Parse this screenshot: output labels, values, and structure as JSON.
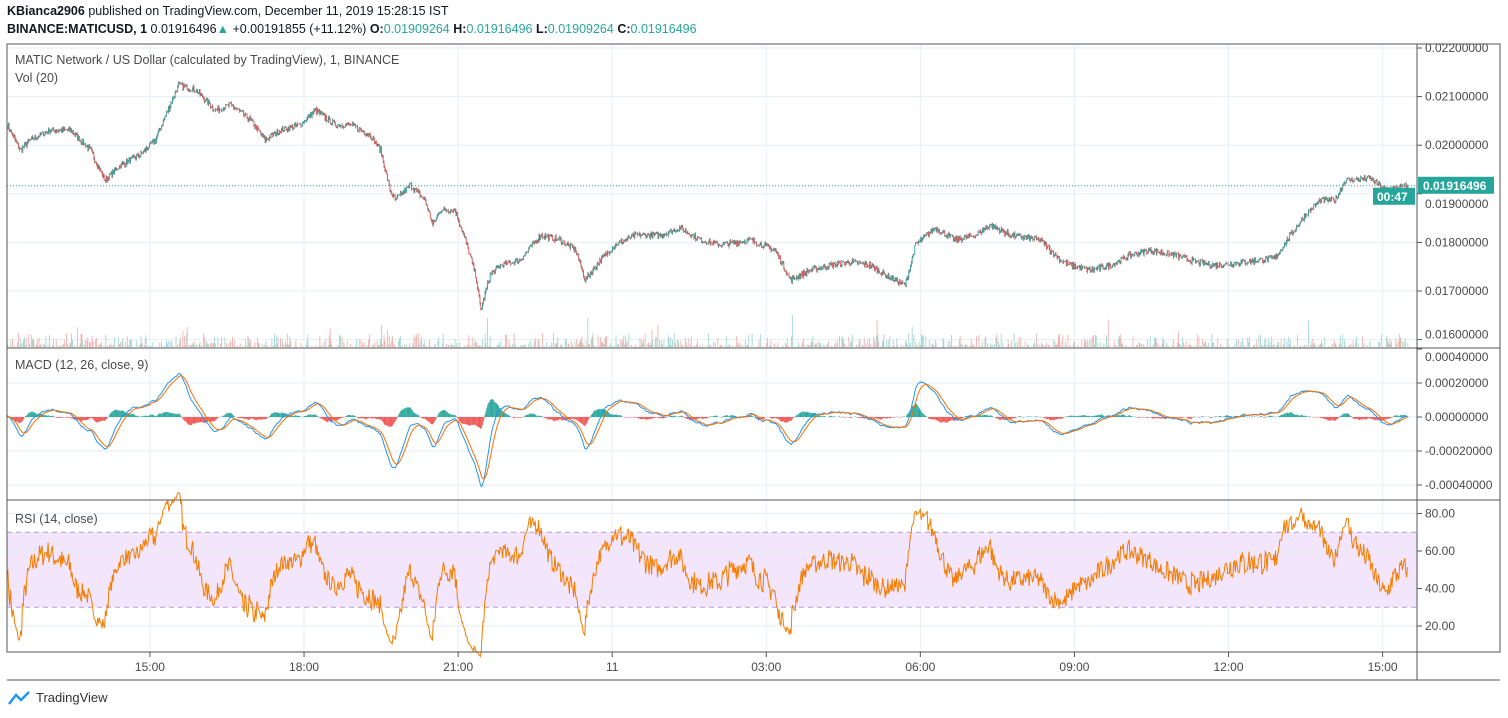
{
  "header": {
    "line1_user": "KBianca2906",
    "line1_rest": "published on TradingView.com, December 11, 2019 15:28:15 IST",
    "symbol": "BINANCE:MATICUSD, 1",
    "last": "0.01916496",
    "change": "+0.00191855 (+11.12%)",
    "o_label": "O:",
    "o": "0.01909264",
    "h_label": "H:",
    "h": "0.01916496",
    "l_label": "L:",
    "l": "0.01909264",
    "c_label": "C:",
    "c": "0.01916496"
  },
  "panes": {
    "main_title": "MATIC Network / US Dollar (calculated by TradingView), 1, BINANCE",
    "vol": "Vol (20)",
    "macd": "MACD (12, 26, close, 9)",
    "rsi": "RSI (14, close)"
  },
  "badges": {
    "price": "0.01916496",
    "countdown": "00:47"
  },
  "footer": {
    "brand": "TradingView"
  },
  "colors": {
    "up": "#26a69a",
    "down": "#ef5350",
    "macd": "#2196f3",
    "signal": "#ff6d00",
    "rsi": "#f57c00",
    "rsi_band": "#f3e5fc"
  },
  "chart_data": [
    {
      "type": "candlestick",
      "title": "MATICUSD 1m",
      "ylim": [
        0.0158,
        0.0222
      ],
      "yticks": [
        "0.02200000",
        "0.02100000",
        "0.02000000",
        "0.01900000",
        "0.01800000",
        "0.01700000",
        "0.01600000"
      ],
      "ytick_values": [
        0.022,
        0.021,
        0.02,
        0.019,
        0.018,
        0.017,
        0.016
      ],
      "xticks": [
        "15:00",
        "18:00",
        "21:00",
        "11",
        "03:00",
        "06:00",
        "09:00",
        "12:00",
        "15:00"
      ],
      "xtick_minutes": [
        167,
        347,
        527,
        707,
        887,
        1067,
        1247,
        1427,
        1607
      ],
      "total_minutes": 1637,
      "keypoints_minute_price": [
        [
          0,
          0.02042
        ],
        [
          15,
          0.0199
        ],
        [
          27,
          0.02011
        ],
        [
          50,
          0.02031
        ],
        [
          74,
          0.02031
        ],
        [
          97,
          0.0199
        ],
        [
          114,
          0.01928
        ],
        [
          132,
          0.01959
        ],
        [
          155,
          0.0198
        ],
        [
          173,
          0.02011
        ],
        [
          185,
          0.02062
        ],
        [
          200,
          0.02124
        ],
        [
          220,
          0.02114
        ],
        [
          243,
          0.02072
        ],
        [
          261,
          0.02083
        ],
        [
          284,
          0.02052
        ],
        [
          301,
          0.02011
        ],
        [
          319,
          0.02031
        ],
        [
          342,
          0.02042
        ],
        [
          360,
          0.02072
        ],
        [
          383,
          0.02042
        ],
        [
          401,
          0.02042
        ],
        [
          424,
          0.02021
        ],
        [
          436,
          0.0199
        ],
        [
          447,
          0.01908
        ],
        [
          453,
          0.01887
        ],
        [
          471,
          0.01918
        ],
        [
          488,
          0.01887
        ],
        [
          497,
          0.01836
        ],
        [
          506,
          0.01867
        ],
        [
          523,
          0.01867
        ],
        [
          535,
          0.01805
        ],
        [
          547,
          0.01733
        ],
        [
          553,
          0.01661
        ],
        [
          564,
          0.01733
        ],
        [
          576,
          0.01753
        ],
        [
          599,
          0.01764
        ],
        [
          623,
          0.01815
        ],
        [
          646,
          0.01805
        ],
        [
          664,
          0.01784
        ],
        [
          675,
          0.01723
        ],
        [
          693,
          0.01764
        ],
        [
          710,
          0.01795
        ],
        [
          734,
          0.01815
        ],
        [
          763,
          0.01815
        ],
        [
          786,
          0.0183
        ],
        [
          810,
          0.01805
        ],
        [
          833,
          0.01795
        ],
        [
          868,
          0.01805
        ],
        [
          897,
          0.01784
        ],
        [
          915,
          0.01723
        ],
        [
          938,
          0.01743
        ],
        [
          961,
          0.01753
        ],
        [
          985,
          0.0176
        ],
        [
          1008,
          0.01753
        ],
        [
          1026,
          0.01733
        ],
        [
          1049,
          0.01712
        ],
        [
          1061,
          0.01795
        ],
        [
          1084,
          0.0183
        ],
        [
          1107,
          0.01805
        ],
        [
          1131,
          0.01815
        ],
        [
          1148,
          0.01836
        ],
        [
          1172,
          0.01815
        ],
        [
          1207,
          0.01805
        ],
        [
          1230,
          0.01764
        ],
        [
          1242,
          0.01753
        ],
        [
          1265,
          0.01743
        ],
        [
          1289,
          0.01753
        ],
        [
          1312,
          0.01774
        ],
        [
          1335,
          0.01784
        ],
        [
          1364,
          0.01774
        ],
        [
          1388,
          0.0176
        ],
        [
          1411,
          0.01753
        ],
        [
          1446,
          0.0176
        ],
        [
          1481,
          0.01768
        ],
        [
          1499,
          0.01815
        ],
        [
          1516,
          0.01856
        ],
        [
          1534,
          0.01887
        ],
        [
          1551,
          0.01887
        ],
        [
          1563,
          0.01928
        ],
        [
          1592,
          0.01932
        ],
        [
          1610,
          0.01908
        ],
        [
          1636,
          0.01916496
        ]
      ]
    },
    {
      "type": "line",
      "title": "MACD (12, 26, close, 9)",
      "ylim": [
        -0.00045,
        0.0004
      ],
      "yticks": [
        "0.00040000",
        "0.00020000",
        "0.00000000",
        "-0.00020000",
        "-0.00040000"
      ],
      "ytick_values": [
        0.0004,
        0.0002,
        0,
        -0.0002,
        -0.0004
      ]
    },
    {
      "type": "line",
      "title": "RSI (14, close)",
      "ylim": [
        5,
        87
      ],
      "yticks": [
        "80.00",
        "60.00",
        "40.00",
        "20.00"
      ],
      "ytick_values": [
        80,
        60,
        40,
        20
      ],
      "band": [
        30,
        70
      ]
    }
  ]
}
